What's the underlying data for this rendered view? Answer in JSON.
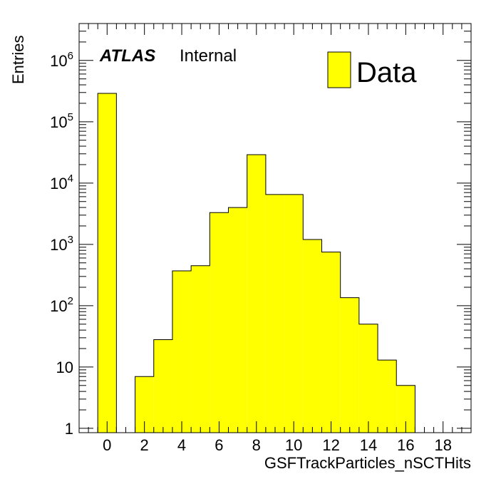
{
  "chart_data": {
    "type": "bar",
    "title": "",
    "xlabel": "GSFTrackParticles_nSCTHits",
    "ylabel": "Entries",
    "x_range": [
      -1.5,
      19.5
    ],
    "ylim": [
      0.85,
      4000000
    ],
    "yscale": "log",
    "grid": false,
    "legend_position": "top-right",
    "experiment_label": "ATLAS",
    "status_label": "Internal",
    "x_ticks": [
      "0",
      "2",
      "4",
      "6",
      "8",
      "10",
      "12",
      "14",
      "16",
      "18"
    ],
    "y_ticks": [
      {
        "value": 1,
        "base": "1",
        "exp": ""
      },
      {
        "value": 10,
        "base": "10",
        "exp": ""
      },
      {
        "value": 100,
        "base": "10",
        "exp": "2"
      },
      {
        "value": 1000,
        "base": "10",
        "exp": "3"
      },
      {
        "value": 10000,
        "base": "10",
        "exp": "4"
      },
      {
        "value": 100000,
        "base": "10",
        "exp": "5"
      },
      {
        "value": 1000000,
        "base": "10",
        "exp": "6"
      }
    ],
    "series": [
      {
        "name": "Data",
        "color": "#ffff00",
        "edge_color": "#000000",
        "bins": [
          -0.5,
          0.5,
          1.5,
          2.5,
          3.5,
          4.5,
          5.5,
          6.5,
          7.5,
          8.5,
          9.5,
          10.5,
          11.5,
          12.5,
          13.5,
          14.5,
          15.5,
          16.5
        ],
        "values": [
          290000,
          0,
          7,
          28,
          370,
          450,
          3300,
          4000,
          29000,
          6500,
          6500,
          1200,
          750,
          135,
          50,
          13,
          5
        ]
      }
    ]
  }
}
